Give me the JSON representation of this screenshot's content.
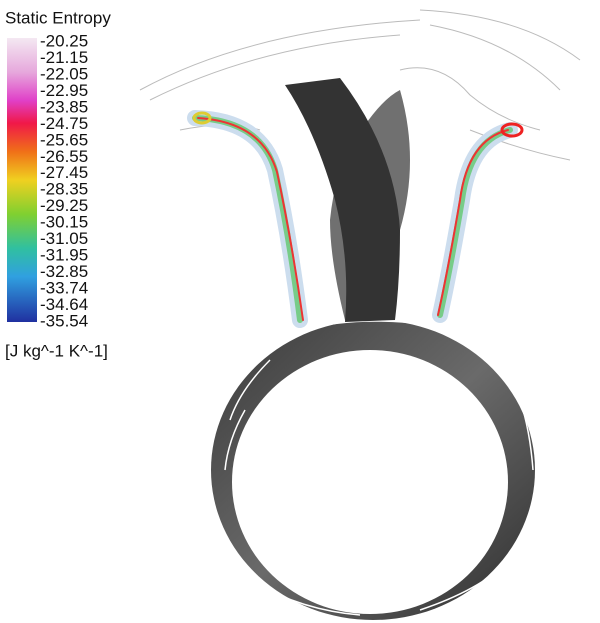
{
  "legend": {
    "title": "Static Entropy",
    "ticks": [
      "-20.25",
      "-21.15",
      "-22.05",
      "-22.95",
      "-23.85",
      "-24.75",
      "-25.65",
      "-26.55",
      "-27.45",
      "-28.35",
      "-29.25",
      "-30.15",
      "-31.05",
      "-31.95",
      "-32.85",
      "-33.74",
      "-34.64",
      "-35.54"
    ],
    "unit": "[J kg^-1 K^-1]"
  }
}
